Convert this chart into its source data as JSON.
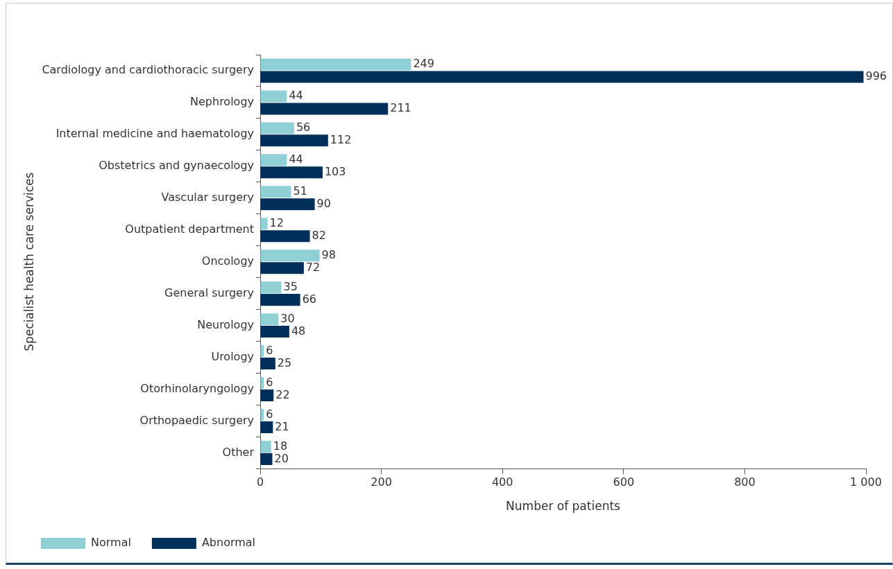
{
  "chart_data": {
    "type": "bar",
    "orientation": "horizontal",
    "xlabel": "Number of patients",
    "ylabel": "Specialist health care services",
    "categories": [
      "Cardiology and cardiothoracic surgery",
      "Nephrology",
      "Internal medicine and haematology",
      "Obstetrics and gynaecology",
      "Vascular surgery",
      "Outpatient department",
      "Oncology",
      "General surgery",
      "Neurology",
      "Urology",
      "Otorhinolaryngology",
      "Orthopaedic surgery",
      "Other"
    ],
    "series": [
      {
        "name": "Normal",
        "color": "#8fd0d5",
        "values": [
          249,
          44,
          56,
          44,
          51,
          12,
          98,
          35,
          30,
          6,
          6,
          6,
          18
        ]
      },
      {
        "name": "Abnormal",
        "color": "#00305a",
        "values": [
          996,
          211,
          112,
          103,
          90,
          82,
          72,
          66,
          48,
          25,
          22,
          21,
          20
        ]
      }
    ],
    "xlim": [
      0,
      1000
    ],
    "xticks": [
      0,
      200,
      400,
      600,
      800,
      {
        "value": 1000,
        "label": "1 000"
      }
    ],
    "grid": false,
    "legend": "bottom left",
    "data_labels": true
  }
}
